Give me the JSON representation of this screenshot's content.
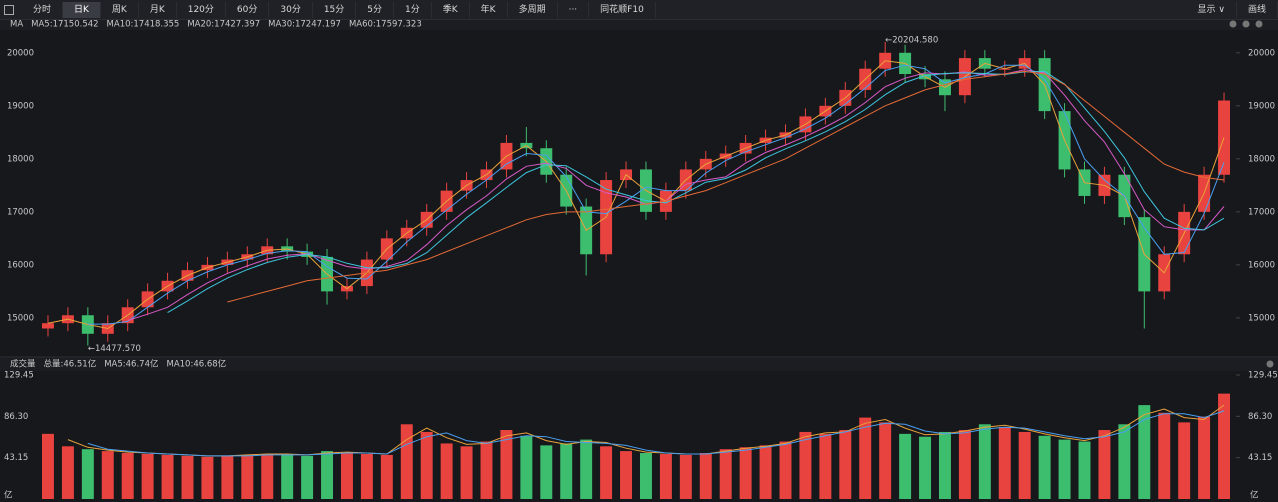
{
  "toolbar": {
    "buttons": [
      "分时",
      "日K",
      "周K",
      "月K",
      "120分",
      "60分",
      "30分",
      "15分",
      "5分",
      "1分",
      "季K",
      "年K",
      "多周期",
      "···",
      "同花顺F10"
    ],
    "active": "日K",
    "right": [
      "显示 ∨",
      "画线"
    ]
  },
  "chart_data": [
    {
      "type": "candlestick",
      "title": "MA",
      "open": [
        14800,
        14900,
        15050,
        14700,
        14900,
        15200,
        15500,
        15700,
        15900,
        16000,
        16100,
        16200,
        16350,
        16250,
        16150,
        15500,
        15600,
        16100,
        16500,
        16700,
        17000,
        17400,
        17600,
        17800,
        18300,
        18200,
        17700,
        17100,
        16200,
        17600,
        17800,
        17000,
        17400,
        17800,
        18000,
        18100,
        18300,
        18400,
        18500,
        18800,
        19000,
        19300,
        19700,
        20000,
        19600,
        19500,
        19200,
        19900,
        19700,
        19700,
        19900,
        18900,
        17800,
        17300,
        17700,
        16900,
        15500,
        16200,
        17000,
        17700
      ],
      "high": [
        15050,
        15200,
        15200,
        15050,
        15350,
        15650,
        15850,
        16050,
        16150,
        16250,
        16350,
        16500,
        16500,
        16400,
        16300,
        15750,
        16250,
        16650,
        16850,
        17150,
        17550,
        17750,
        17950,
        18450,
        18600,
        18350,
        17850,
        17250,
        17750,
        17950,
        17950,
        17550,
        17950,
        18150,
        18250,
        18450,
        18550,
        18650,
        18950,
        19150,
        19450,
        19850,
        20204.58,
        20150,
        19750,
        19650,
        20050,
        20050,
        19850,
        20050,
        20050,
        19050,
        17950,
        17850,
        17850,
        17050,
        16350,
        17150,
        17850,
        19250
      ],
      "low": [
        14650,
        14750,
        14477.57,
        14550,
        14750,
        15050,
        15350,
        15550,
        15750,
        15850,
        15950,
        16050,
        16100,
        16000,
        15250,
        15350,
        15450,
        15950,
        16350,
        16550,
        16850,
        17250,
        17450,
        17650,
        18050,
        17550,
        16950,
        15800,
        16050,
        17450,
        16850,
        16850,
        17250,
        17650,
        17850,
        17950,
        18150,
        18250,
        18350,
        18650,
        18850,
        19150,
        19550,
        19450,
        19350,
        18900,
        19050,
        19550,
        19550,
        19550,
        18750,
        17650,
        17150,
        17150,
        16750,
        14800,
        15350,
        16050,
        16850,
        17550
      ],
      "close": [
        14900,
        15050,
        14700,
        14900,
        15200,
        15500,
        15700,
        15900,
        16000,
        16100,
        16200,
        16350,
        16250,
        16150,
        15500,
        15600,
        16100,
        16500,
        16700,
        17000,
        17400,
        17600,
        17800,
        18300,
        18200,
        17700,
        17100,
        16200,
        17600,
        17800,
        17000,
        17400,
        17800,
        18000,
        18100,
        18300,
        18400,
        18500,
        18800,
        19000,
        19300,
        19700,
        20000,
        19600,
        19500,
        19200,
        19900,
        19700,
        19700,
        19900,
        18900,
        17800,
        17300,
        17700,
        16900,
        15500,
        16200,
        17000,
        17700,
        19100
      ],
      "up_color": "#e8433f",
      "down_color": "#3dbd6e",
      "ylim": [
        14300,
        20430
      ],
      "yticks": [
        15000,
        16000,
        17000,
        18000,
        19000,
        20000
      ],
      "annotations": [
        "←20204.580",
        "←14477.570"
      ],
      "series": [
        {
          "name": "MA5:17150.542",
          "color": "#e9a23b",
          "values": [
            14900,
            14975,
            14875,
            14800,
            15050,
            15350,
            15600,
            15800,
            15950,
            16050,
            16150,
            16275,
            16300,
            16200,
            15825,
            15550,
            15850,
            16300,
            16600,
            16850,
            17200,
            17500,
            17700,
            18050,
            18250,
            17950,
            17400,
            16650,
            16900,
            17700,
            17400,
            17200,
            17600,
            17900,
            18050,
            18200,
            18350,
            18450,
            18650,
            18900,
            19150,
            19500,
            19850,
            19800,
            19550,
            19350,
            19550,
            19800,
            19700,
            19800,
            19400,
            18350,
            17550,
            17500,
            17300,
            16200,
            15850,
            16600,
            17350,
            18400
          ]
        },
        {
          "name": "MA10:17418.355",
          "color": "#4a9ff0",
          "values": [
            null,
            null,
            14883,
            14883,
            14933,
            15200,
            15467,
            15700,
            15867,
            16000,
            16100,
            16217,
            16267,
            16250,
            15967,
            15750,
            15733,
            16067,
            16433,
            16733,
            17033,
            17333,
            17600,
            17900,
            18100,
            18067,
            17667,
            17000,
            16967,
            17200,
            17467,
            17400,
            17400,
            17733,
            17967,
            18133,
            18267,
            18400,
            18567,
            18767,
            19033,
            19333,
            19667,
            19767,
            19700,
            19433,
            19533,
            19600,
            19767,
            19767,
            19500,
            18867,
            18000,
            17600,
            17300,
            16700,
            16200,
            16233,
            16967,
            17933
          ]
        },
        {
          "name": "MA20:17427.397",
          "color": "#d85ac8",
          "values": [
            null,
            null,
            null,
            null,
            14950,
            15070,
            15200,
            15440,
            15660,
            15840,
            15980,
            16110,
            16180,
            16210,
            16090,
            15970,
            15920,
            15970,
            16080,
            16380,
            16740,
            17040,
            17300,
            17620,
            17860,
            17920,
            17820,
            17500,
            17360,
            17280,
            17140,
            17200,
            17520,
            17600,
            17660,
            17920,
            18120,
            18260,
            18420,
            18600,
            18800,
            19060,
            19360,
            19520,
            19620,
            19600,
            19640,
            19580,
            19600,
            19680,
            19620,
            19200,
            18720,
            18320,
            17720,
            17040,
            16720,
            16660,
            16660,
            17100
          ]
        },
        {
          "name": "MA30:17247.197",
          "color": "#3ec4dc",
          "values": [
            null,
            null,
            null,
            null,
            null,
            null,
            15100,
            15320,
            15550,
            15750,
            15910,
            16045,
            16145,
            16195,
            16150,
            16030,
            15945,
            15945,
            16025,
            16230,
            16560,
            16890,
            17170,
            17460,
            17740,
            17890,
            17870,
            17660,
            17430,
            17320,
            17210,
            17170,
            17360,
            17560,
            17630,
            17790,
            18020,
            18190,
            18340,
            18510,
            18700,
            18930,
            19210,
            19440,
            19570,
            19610,
            19620,
            19610,
            19590,
            19640,
            19650,
            19410,
            18960,
            18520,
            18020,
            17380,
            16880,
            16690,
            16660,
            16880
          ]
        },
        {
          "name": "MA60:17597.323",
          "color": "#e46a36",
          "values": [
            null,
            null,
            null,
            null,
            null,
            null,
            null,
            null,
            null,
            15300,
            15400,
            15500,
            15600,
            15700,
            15750,
            15800,
            15850,
            15900,
            16000,
            16100,
            16250,
            16400,
            16550,
            16700,
            16850,
            16950,
            17000,
            17000,
            17050,
            17100,
            17150,
            17200,
            17300,
            17400,
            17550,
            17700,
            17850,
            18000,
            18200,
            18400,
            18600,
            18800,
            19000,
            19150,
            19300,
            19400,
            19500,
            19550,
            19600,
            19650,
            19600,
            19400,
            19100,
            18800,
            18500,
            18200,
            17900,
            17750,
            17650,
            17600
          ]
        }
      ]
    },
    {
      "type": "bar",
      "title": "成交量",
      "unit": "亿",
      "total_label": "总量:46.51亿",
      "total_color": "#3dbd6e",
      "values": [
        68,
        55,
        52,
        50,
        48,
        47,
        46,
        45,
        44,
        45,
        46,
        47,
        46,
        45,
        50,
        48,
        47,
        46,
        78,
        70,
        58,
        55,
        60,
        72,
        66,
        56,
        58,
        62,
        55,
        50,
        48,
        47,
        46,
        48,
        52,
        54,
        56,
        60,
        70,
        68,
        72,
        85,
        80,
        68,
        65,
        70,
        72,
        78,
        75,
        70,
        66,
        62,
        60,
        72,
        78,
        98,
        90,
        80,
        86,
        110
      ],
      "ylim": [
        0,
        129.45
      ],
      "yticks": [
        43.15,
        {
          "value": 86.3,
          "label": "86.30"
        },
        129.45
      ],
      "series": [
        {
          "name": "MA5:46.74亿",
          "color": "#e9a23b",
          "values": [
            null,
            62,
            54,
            51,
            49,
            48,
            47,
            46,
            45,
            45,
            46,
            47,
            47,
            46,
            48,
            49,
            48,
            47,
            62,
            74,
            64,
            57,
            58,
            66,
            69,
            61,
            57,
            60,
            59,
            53,
            49,
            48,
            47,
            47,
            50,
            53,
            55,
            58,
            65,
            69,
            70,
            79,
            83,
            74,
            67,
            68,
            71,
            75,
            77,
            73,
            68,
            64,
            61,
            66,
            75,
            88,
            94,
            85,
            83,
            98
          ]
        },
        {
          "name": "MA10:46.68亿",
          "color": "#4a9ff0",
          "values": [
            null,
            null,
            58,
            52,
            50,
            48,
            47,
            46,
            45,
            45,
            45,
            46,
            46,
            46,
            47,
            48,
            48,
            47,
            57,
            65,
            69,
            61,
            58,
            62,
            66,
            65,
            60,
            59,
            58,
            56,
            51,
            48,
            47,
            47,
            49,
            51,
            54,
            57,
            62,
            66,
            70,
            75,
            79,
            78,
            71,
            68,
            69,
            73,
            75,
            74,
            70,
            66,
            63,
            65,
            70,
            83,
            89,
            89,
            85,
            92
          ]
        }
      ]
    }
  ]
}
